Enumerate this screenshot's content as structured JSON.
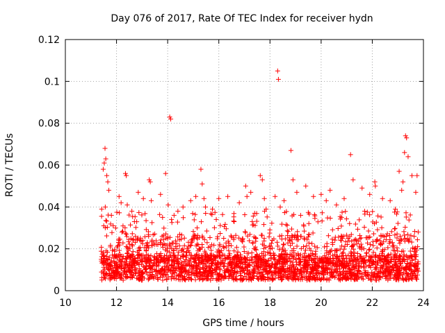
{
  "chart_data": {
    "type": "scatter",
    "title": "Day 076 of 2017, Rate Of TEC Index for receiver hydn",
    "xlabel": "GPS time / hours",
    "ylabel": "ROTI / TECUs",
    "xlim": [
      10,
      24
    ],
    "ylim": [
      0,
      0.12
    ],
    "xticks": [
      10,
      12,
      14,
      16,
      18,
      20,
      22,
      24
    ],
    "yticks": [
      0,
      0.02,
      0.04,
      0.06,
      0.08,
      0.1,
      0.12
    ],
    "xtick_labels": [
      "10",
      "12",
      "14",
      "16",
      "18",
      "20",
      "22",
      "24"
    ],
    "ytick_labels": [
      "0",
      "0.02",
      "0.04",
      "0.06",
      "0.08",
      "0.1",
      "0.12"
    ],
    "grid": true,
    "marker": "+",
    "series": [
      {
        "name": "ROTI",
        "color": "#ff0000",
        "x": [
          11.42,
          11.48,
          11.52,
          11.55,
          11.58,
          11.62,
          11.66,
          11.7,
          11.56,
          11.5,
          12.1,
          12.18,
          12.35,
          12.38,
          12.42,
          12.6,
          12.85,
          13.05,
          13.28,
          13.32,
          13.36,
          13.72,
          13.92,
          14.02,
          14.08,
          14.12,
          14.15,
          14.25,
          14.6,
          14.9,
          15.1,
          15.3,
          15.35,
          15.42,
          15.48,
          15.75,
          16.0,
          16.35,
          16.8,
          17.05,
          17.1,
          17.25,
          17.62,
          17.7,
          17.78,
          17.85,
          18.2,
          18.3,
          18.33,
          18.4,
          18.55,
          18.82,
          18.9,
          19.05,
          19.4,
          19.7,
          20.0,
          20.2,
          20.35,
          20.6,
          20.9,
          21.15,
          21.25,
          21.6,
          21.9,
          22.1,
          22.12,
          22.4,
          22.7,
          23.05,
          23.15,
          23.2,
          23.26,
          23.3,
          23.34,
          23.55,
          23.7,
          23.75,
          23.4,
          11.8,
          12.7,
          13.8,
          14.4,
          15.9,
          16.6,
          17.4,
          19.2,
          20.8,
          21.7,
          22.9
        ],
        "y": [
          0.039,
          0.058,
          0.061,
          0.068,
          0.063,
          0.055,
          0.052,
          0.048,
          0.04,
          0.031,
          0.045,
          0.042,
          0.056,
          0.055,
          0.041,
          0.038,
          0.047,
          0.044,
          0.053,
          0.052,
          0.043,
          0.046,
          0.056,
          0.041,
          0.083,
          0.082,
          0.034,
          0.036,
          0.04,
          0.043,
          0.045,
          0.058,
          0.051,
          0.044,
          0.04,
          0.039,
          0.044,
          0.045,
          0.042,
          0.05,
          0.045,
          0.047,
          0.055,
          0.053,
          0.044,
          0.039,
          0.045,
          0.105,
          0.101,
          0.04,
          0.043,
          0.067,
          0.053,
          0.047,
          0.05,
          0.045,
          0.046,
          0.043,
          0.048,
          0.041,
          0.044,
          0.065,
          0.053,
          0.049,
          0.046,
          0.052,
          0.05,
          0.044,
          0.043,
          0.057,
          0.048,
          0.052,
          0.066,
          0.074,
          0.073,
          0.055,
          0.047,
          0.055,
          0.064,
          0.036,
          0.033,
          0.035,
          0.038,
          0.034,
          0.033,
          0.037,
          0.036,
          0.035,
          0.038,
          0.039
        ]
      }
    ],
    "dense_band": {
      "x_range": [
        11.4,
        23.8
      ],
      "y_range": [
        0.004,
        0.04
      ],
      "note": "thousands of overlapping red + markers concentrated between 0.005 and 0.03 ROTI"
    }
  }
}
